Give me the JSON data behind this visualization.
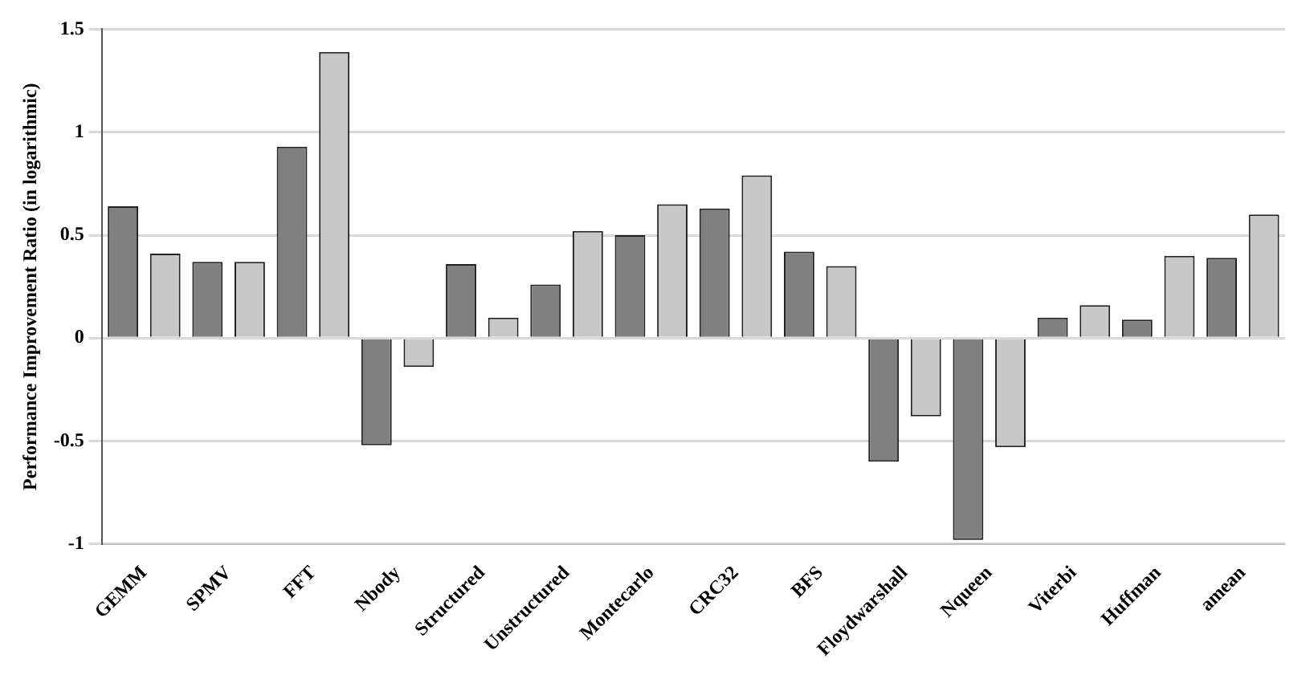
{
  "chart_data": {
    "type": "bar",
    "ylabel": "Performance Improvement Ratio (in logarithmic)",
    "categories": [
      "GEMM",
      "SPMV",
      "FFT",
      "Nbody",
      "Structured",
      "Unstructured",
      "Montecarlo",
      "CRC32",
      "BFS",
      "Floydwarshall",
      "Nqueen",
      "Viterbi",
      "Huffman",
      "amean"
    ],
    "series": [
      {
        "color": "#808080",
        "values": [
          0.64,
          0.37,
          0.93,
          -0.52,
          0.36,
          0.26,
          0.5,
          0.63,
          0.42,
          -0.6,
          -0.98,
          0.1,
          0.09,
          0.39
        ]
      },
      {
        "color": "#c8c8c8",
        "values": [
          0.41,
          0.37,
          1.39,
          -0.14,
          0.1,
          0.52,
          0.65,
          0.79,
          0.35,
          -0.38,
          -0.53,
          0.16,
          0.4,
          0.6
        ]
      }
    ],
    "ylim": [
      -1,
      1.5
    ],
    "yticks": [
      -1,
      -0.5,
      0,
      0.5,
      1,
      1.5
    ],
    "grid": "y",
    "legend": false
  }
}
